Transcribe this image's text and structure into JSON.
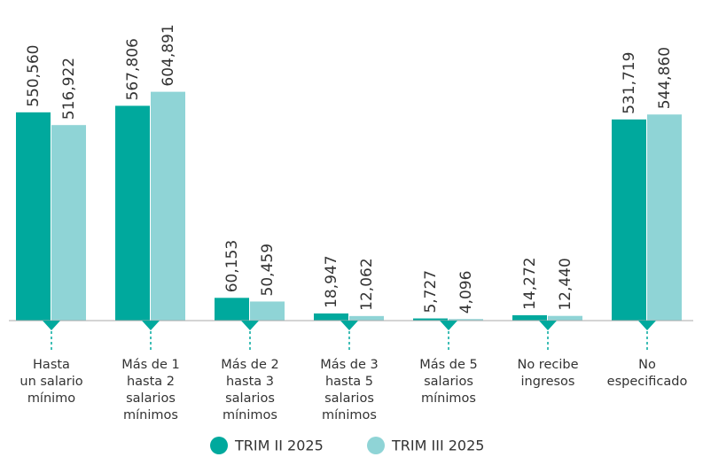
{
  "chart_data": {
    "type": "bar",
    "categories": [
      [
        "Hasta",
        "un salario",
        "mínimo"
      ],
      [
        "Más de 1",
        "hasta 2",
        "salarios",
        "mínimos"
      ],
      [
        "Más de 2",
        "hasta 3",
        "salarios",
        "mínimos"
      ],
      [
        "Más de 3",
        "hasta 5",
        "salarios",
        "mínimos"
      ],
      [
        "Más de 5",
        "salarios",
        "mínimos"
      ],
      [
        "No recibe",
        "ingresos"
      ],
      [
        "No",
        "especificado"
      ]
    ],
    "series": [
      {
        "name": "TRIM II 2025",
        "color": "#00a99d",
        "values": [
          550560,
          567806,
          60153,
          18947,
          5727,
          14272,
          531719
        ],
        "value_labels": [
          "550,560",
          "567,806",
          "60,153",
          "18,947",
          "5,727",
          "14,272",
          "531,719"
        ]
      },
      {
        "name": "TRIM III 2025",
        "color": "#8fd4d6",
        "values": [
          516922,
          604891,
          50459,
          12062,
          4096,
          12440,
          544860
        ],
        "value_labels": [
          "516,922",
          "604,891",
          "50,459",
          "12,062",
          "4,096",
          "12,440",
          "544,860"
        ]
      }
    ],
    "ylim": [
      0,
      700000
    ]
  }
}
